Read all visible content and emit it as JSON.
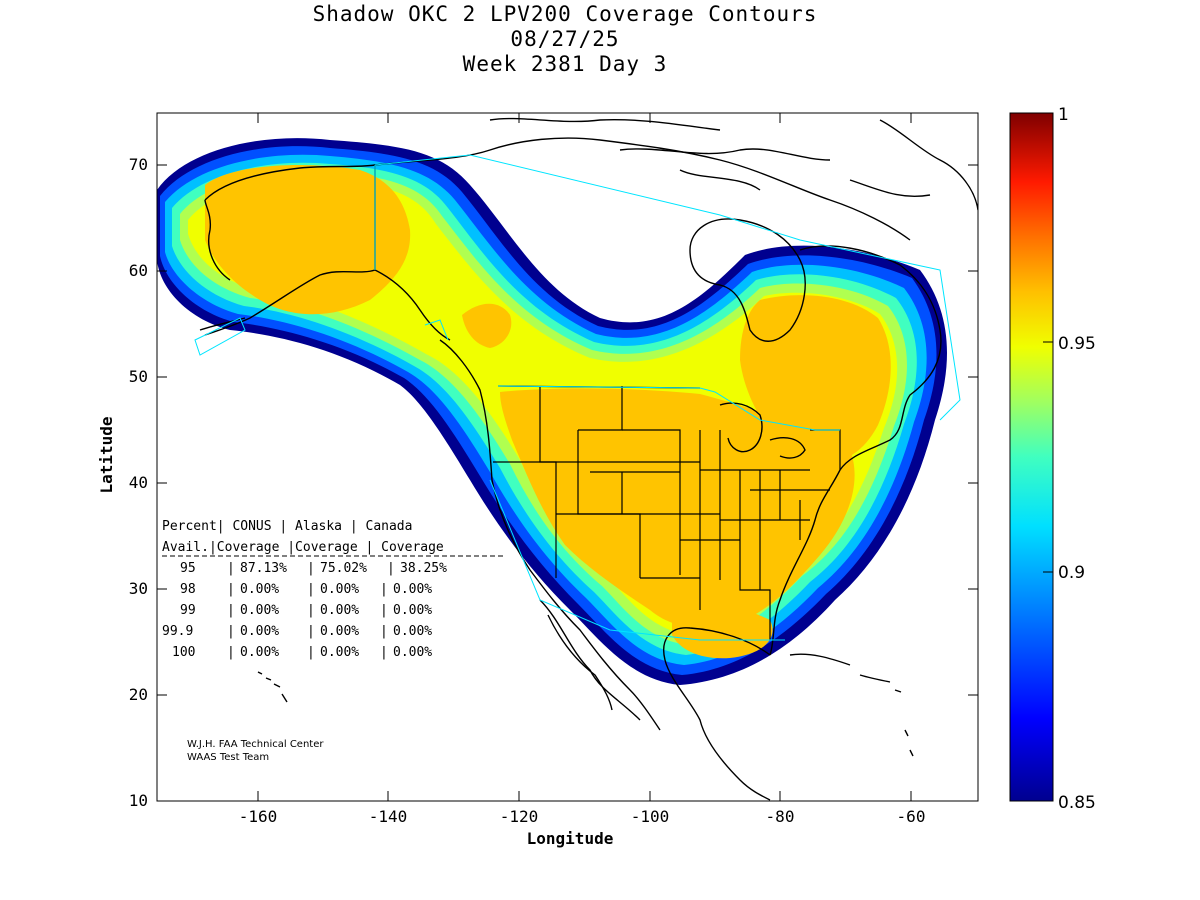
{
  "title": {
    "line1": "Shadow OKC 2 LPV200 Coverage Contours",
    "line2": "08/27/25",
    "line3": "Week 2381 Day 3"
  },
  "axes": {
    "xlabel": "Longitude",
    "ylabel": "Latitude",
    "xlim": [
      -175,
      -50
    ],
    "ylim": [
      10,
      75
    ],
    "xticks": [
      "-160",
      "-140",
      "-120",
      "-100",
      "-80",
      "-60"
    ],
    "yticks": [
      "10",
      "20",
      "30",
      "40",
      "50",
      "60",
      "70"
    ]
  },
  "colorbar": {
    "range": [
      0.85,
      1.0
    ],
    "ticks": [
      "0.85",
      "0.9",
      "0.95",
      "1"
    ]
  },
  "coverage_table": {
    "headers": [
      "Percent| CONUS   | Alaska  | Canada",
      " Avail.|Coverage |Coverage | Coverage"
    ],
    "rows": [
      {
        "percent": "95",
        "conus": "87.13%",
        "alaska": "75.02%",
        "canada": "38.25%"
      },
      {
        "percent": "98",
        "conus": "0.00%",
        "alaska": "0.00%",
        "canada": "0.00%"
      },
      {
        "percent": "99",
        "conus": "0.00%",
        "alaska": "0.00%",
        "canada": "0.00%"
      },
      {
        "percent": "99.9",
        "conus": "0.00%",
        "alaska": "0.00%",
        "canada": "0.00%"
      },
      {
        "percent": "100",
        "conus": "0.00%",
        "alaska": "0.00%",
        "canada": "0.00%"
      }
    ]
  },
  "credit": {
    "line1": "W.J.H. FAA Technical Center",
    "line2": "WAAS Test Team"
  },
  "colors": {
    "c850": "#00008f",
    "c870": "#0050ff",
    "c890": "#00c0ff",
    "c910": "#40ffc0",
    "c930": "#b0ff50",
    "c945": "#f0ff00",
    "c950": "#ffc400",
    "boundary": "#00e5ff"
  }
}
